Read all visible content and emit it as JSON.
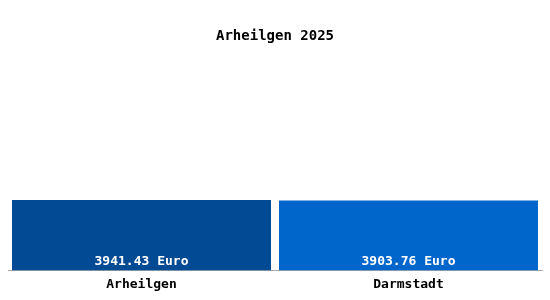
{
  "chart_data": {
    "type": "bar",
    "title": "Arheilgen 2025",
    "categories": [
      "Arheilgen",
      "Darmstadt"
    ],
    "values": [
      3941.43,
      3903.76
    ],
    "value_labels": [
      "3941.43 Euro",
      "3903.76 Euro"
    ],
    "data_labels": true,
    "colors": [
      "#034a94",
      "#0066cc"
    ],
    "ylim": [
      0,
      11500
    ],
    "tick_labels": "x",
    "grid": false
  }
}
